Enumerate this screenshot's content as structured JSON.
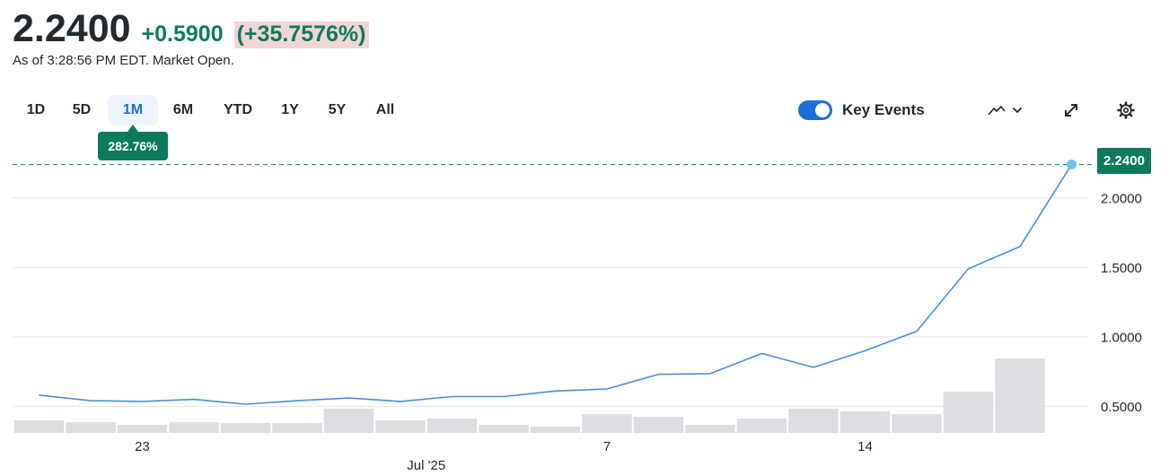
{
  "header": {
    "price": "2.2400",
    "change": "+0.5900",
    "change_percent": "(+35.7576%)",
    "as_of": "As of 3:28:56 PM EDT. Market Open."
  },
  "range_tabs": [
    {
      "label": "1D",
      "active": false
    },
    {
      "label": "5D",
      "active": false
    },
    {
      "label": "1M",
      "active": true
    },
    {
      "label": "6M",
      "active": false
    },
    {
      "label": "YTD",
      "active": false
    },
    {
      "label": "1Y",
      "active": false
    },
    {
      "label": "5Y",
      "active": false
    },
    {
      "label": "All",
      "active": false
    }
  ],
  "performance_badge": "282.76%",
  "toolbar": {
    "key_events_label": "Key Events",
    "key_events_enabled": true,
    "chart_type_icon": "line-chart-icon",
    "expand_icon": "expand-icon",
    "settings_icon": "gear-icon"
  },
  "colors": {
    "positive": "#0b7b5c",
    "line": "#4a8fd9",
    "accent": "#1d6fd8",
    "volume": "#dcdee1",
    "grid": "#e3e5e8"
  },
  "chart_data": {
    "type": "line",
    "title": "",
    "current_value_label": "2.2400",
    "reference_line_value": 2.24,
    "y_tick_labels": [
      "0.5000",
      "1.0000",
      "1.5000",
      "2.0000"
    ],
    "y_ticks": [
      0.5,
      1.0,
      1.5,
      2.0
    ],
    "ylim": [
      0.47,
      2.27
    ],
    "x_tick_labels": [
      {
        "label": "23",
        "index": 2
      },
      {
        "label": "7",
        "index": 11
      },
      {
        "label": "14",
        "index": 16
      }
    ],
    "x_month_label": {
      "label": "Jul '25",
      "index": 7.5
    },
    "grid": true,
    "series": [
      {
        "values": [
          0.58,
          0.54,
          0.535,
          0.55,
          0.515,
          0.54,
          0.56,
          0.535,
          0.57,
          0.57,
          0.61,
          0.625,
          0.73,
          0.735,
          0.88,
          0.78,
          0.9,
          1.04,
          1.49,
          1.65,
          2.24
        ]
      }
    ],
    "volume": [
      14,
      12,
      9,
      12,
      11,
      11,
      27,
      14,
      16,
      9,
      7,
      21,
      18,
      9,
      16,
      27,
      24,
      21,
      46,
      83
    ]
  }
}
